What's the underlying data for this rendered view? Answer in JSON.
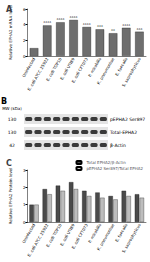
{
  "chart_data": [
    {
      "type": "bar",
      "title": "A",
      "y_label": "Relative EPHA2 mRNA level",
      "categories": [
        "Uninfected",
        "E. coli ATCC 25922",
        "E. coli TOP10",
        "E. coli UTI89",
        "E. coli CFT073",
        "P. mirabilis",
        "K. pneumoniae",
        "E. faecalis",
        "S. saprophyticus"
      ],
      "values": [
        1,
        3.9,
        4.3,
        4.6,
        3.7,
        3.4,
        2.9,
        3.6,
        3.1
      ],
      "annotations": [
        "",
        "****",
        "****",
        "****",
        "****",
        "***",
        "**",
        "****",
        "***"
      ],
      "color": "#6e6e6e",
      "ylim": [
        0,
        6
      ],
      "yticks": [
        0,
        2,
        4,
        6
      ],
      "grid": false
    },
    {
      "type": "bar",
      "title": "C",
      "y_label": "Relative EPHA2 Protein level",
      "categories": [
        "Uninfected",
        "E. coli ATCC 25922",
        "E. coli TOP10",
        "E. coli UTI89",
        "E. coli CFT073",
        "P. mirabilis",
        "K. pneumoniae",
        "E. faecalis",
        "S. saprophyticus"
      ],
      "series": [
        {
          "name": "Total EPHA2/β-Actin",
          "color": "#4a4a4a",
          "values": [
            1,
            1.9,
            2.1,
            2.3,
            1.8,
            1.7,
            1.5,
            1.8,
            1.6
          ]
        },
        {
          "name": "pEPHA2 Ser897/Total EPHA2",
          "color": "#bdbdbd",
          "values": [
            1,
            1.6,
            1.8,
            1.9,
            1.5,
            1.4,
            1.3,
            1.5,
            1.4
          ]
        }
      ],
      "legend": "top-right",
      "ylim": [
        0,
        3
      ],
      "yticks": [
        0,
        1,
        2,
        3
      ],
      "grid": false
    }
  ],
  "blot": {
    "title": "B",
    "mw_header": "MW (kDa)",
    "lanes": 9,
    "rows": [
      {
        "label": "pEPHA2 Ser897",
        "mw": "130"
      },
      {
        "label": "Total-EPHA2",
        "mw": "130"
      },
      {
        "label": "β-Actin",
        "mw": "42"
      }
    ]
  }
}
